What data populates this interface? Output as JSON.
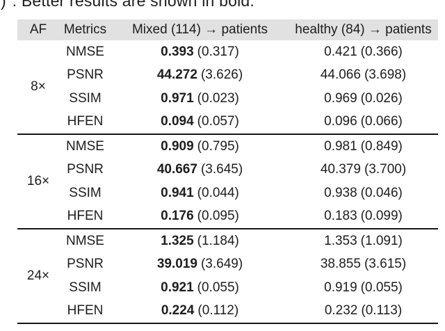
{
  "caption": {
    "fragment": ")",
    "text": ". Better results are shown in bold."
  },
  "table": {
    "headers": {
      "af": "AF",
      "metrics": "Metrics",
      "mixed": "Mixed (114) → patients",
      "healthy": "healthy (84) → patients"
    },
    "groups": [
      {
        "af": "8×",
        "rows": [
          {
            "metric": "NMSE",
            "mixed_value": "0.393",
            "mixed_std": "(0.317)",
            "healthy_value": "0.421",
            "healthy_std": "(0.366)"
          },
          {
            "metric": "PSNR",
            "mixed_value": "44.272",
            "mixed_std": "(3.626)",
            "healthy_value": "44.066",
            "healthy_std": "(3.698)"
          },
          {
            "metric": "SSIM",
            "mixed_value": "0.971",
            "mixed_std": "(0.023)",
            "healthy_value": "0.969",
            "healthy_std": "(0.026)"
          },
          {
            "metric": "HFEN",
            "mixed_value": "0.094",
            "mixed_std": "(0.057)",
            "healthy_value": "0.096",
            "healthy_std": "(0.066)"
          }
        ]
      },
      {
        "af": "16×",
        "rows": [
          {
            "metric": "NMSE",
            "mixed_value": "0.909",
            "mixed_std": "(0.795)",
            "healthy_value": "0.981",
            "healthy_std": "(0.849)"
          },
          {
            "metric": "PSNR",
            "mixed_value": "40.667",
            "mixed_std": "(3.645)",
            "healthy_value": "40.379",
            "healthy_std": "(3.700)"
          },
          {
            "metric": "SSIM",
            "mixed_value": "0.941",
            "mixed_std": "(0.044)",
            "healthy_value": "0.938",
            "healthy_std": "(0.046)"
          },
          {
            "metric": "HFEN",
            "mixed_value": "0.176",
            "mixed_std": "(0.095)",
            "healthy_value": "0.183",
            "healthy_std": "(0.099)"
          }
        ]
      },
      {
        "af": "24×",
        "rows": [
          {
            "metric": "NMSE",
            "mixed_value": "1.325",
            "mixed_std": "(1.184)",
            "healthy_value": "1.353",
            "healthy_std": "(1.091)"
          },
          {
            "metric": "PSNR",
            "mixed_value": "39.019",
            "mixed_std": "(3.649)",
            "healthy_value": "38.855",
            "healthy_std": "(3.615)"
          },
          {
            "metric": "SSIM",
            "mixed_value": "0.921",
            "mixed_std": "(0.055)",
            "healthy_value": "0.919",
            "healthy_std": "(0.055)"
          },
          {
            "metric": "HFEN",
            "mixed_value": "0.224",
            "mixed_std": "(0.112)",
            "healthy_value": "0.232",
            "healthy_std": "(0.113)"
          }
        ]
      }
    ]
  },
  "colors": {
    "background": "#ffffff",
    "header_bg": "#e1e1e1",
    "text": "#1d1d1d",
    "rule": "#161616"
  },
  "chart_data": {
    "type": "table",
    "columns": [
      "AF",
      "Metrics",
      "Mixed (114) → patients",
      "healthy (84) → patients"
    ],
    "rows": [
      [
        "8×",
        "NMSE",
        "0.393 (0.317)",
        "0.421 (0.366)"
      ],
      [
        "8×",
        "PSNR",
        "44.272 (3.626)",
        "44.066 (3.698)"
      ],
      [
        "8×",
        "SSIM",
        "0.971 (0.023)",
        "0.969 (0.026)"
      ],
      [
        "8×",
        "HFEN",
        "0.094 (0.057)",
        "0.096 (0.066)"
      ],
      [
        "16×",
        "NMSE",
        "0.909 (0.795)",
        "0.981 (0.849)"
      ],
      [
        "16×",
        "PSNR",
        "40.667 (3.645)",
        "40.379 (3.700)"
      ],
      [
        "16×",
        "SSIM",
        "0.941 (0.044)",
        "0.938 (0.046)"
      ],
      [
        "16×",
        "HFEN",
        "0.176 (0.095)",
        "0.183 (0.099)"
      ],
      [
        "24×",
        "NMSE",
        "1.325 (1.184)",
        "1.353 (1.091)"
      ],
      [
        "24×",
        "PSNR",
        "39.019 (3.649)",
        "38.855 (3.615)"
      ],
      [
        "24×",
        "SSIM",
        "0.921 (0.055)",
        "0.919 (0.055)"
      ],
      [
        "24×",
        "HFEN",
        "0.224 (0.112)",
        "0.232 (0.113)"
      ]
    ],
    "bold_column": "Mixed (114) → patients",
    "caption_visible": ". Better results are shown in bold."
  }
}
